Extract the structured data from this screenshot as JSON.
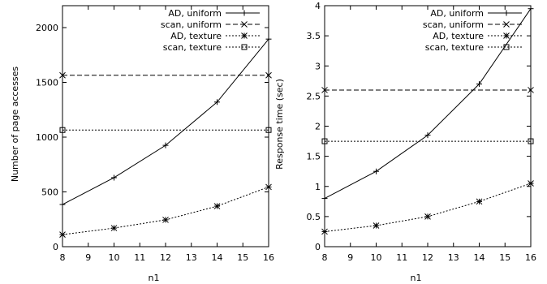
{
  "chart_data": [
    {
      "type": "line",
      "xlabel": "n1",
      "ylabel": "Number of page accesses",
      "xlim": [
        8,
        16
      ],
      "ylim": [
        0,
        2200
      ],
      "xticks": [
        8,
        9,
        10,
        11,
        12,
        13,
        14,
        15,
        16
      ],
      "yticks": [
        0,
        500,
        1000,
        1500,
        2000
      ],
      "legend_position": "top-right",
      "grid": false,
      "series": [
        {
          "name": "AD, uniform",
          "line": "solid",
          "marker": "plus",
          "x": [
            8,
            10,
            12,
            14,
            16
          ],
          "y": [
            385,
            630,
            925,
            1320,
            1895
          ]
        },
        {
          "name": "scan, uniform",
          "line": "dashed",
          "marker": "cross",
          "x": [
            8,
            16
          ],
          "y": [
            1565,
            1565
          ]
        },
        {
          "name": "AD, texture",
          "line": "dotted",
          "marker": "star",
          "x": [
            8,
            10,
            12,
            14,
            16
          ],
          "y": [
            110,
            170,
            245,
            370,
            545
          ]
        },
        {
          "name": "scan, texture",
          "line": "dotted",
          "marker": "square",
          "x": [
            8,
            16
          ],
          "y": [
            1065,
            1065
          ]
        }
      ]
    },
    {
      "type": "line",
      "xlabel": "n1",
      "ylabel": "Response time (sec)",
      "xlim": [
        8,
        16
      ],
      "ylim": [
        0,
        4
      ],
      "xticks": [
        8,
        9,
        10,
        11,
        12,
        13,
        14,
        15,
        16
      ],
      "yticks": [
        0,
        0.5,
        1,
        1.5,
        2,
        2.5,
        3,
        3.5,
        4
      ],
      "legend_position": "top-right",
      "grid": false,
      "series": [
        {
          "name": "AD, uniform",
          "line": "solid",
          "marker": "plus",
          "x": [
            8,
            10,
            12,
            14,
            16
          ],
          "y": [
            0.8,
            1.25,
            1.85,
            2.7,
            3.95
          ]
        },
        {
          "name": "scan, uniform",
          "line": "dashed",
          "marker": "cross",
          "x": [
            8,
            16
          ],
          "y": [
            2.6,
            2.6
          ]
        },
        {
          "name": "AD, texture",
          "line": "dotted",
          "marker": "star",
          "x": [
            8,
            10,
            12,
            14,
            16
          ],
          "y": [
            0.25,
            0.35,
            0.5,
            0.75,
            1.05
          ]
        },
        {
          "name": "scan, texture",
          "line": "dotted",
          "marker": "square",
          "x": [
            8,
            16
          ],
          "y": [
            1.75,
            1.75
          ]
        }
      ]
    }
  ]
}
